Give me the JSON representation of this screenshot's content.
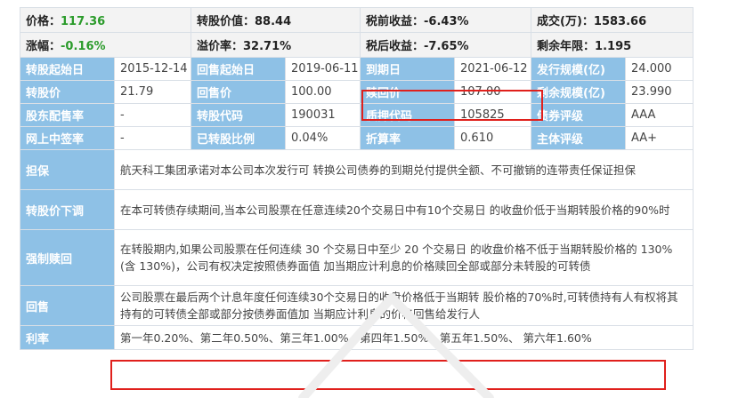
{
  "summary": {
    "price_label": "价格：",
    "price_value": "117.36",
    "conv_value_label": "转股价值：",
    "conv_value": "88.44",
    "pretax_label": "税前收益：",
    "pretax_value": "-6.43%",
    "volume_label": "成交(万)：",
    "volume_value": "1583.66",
    "change_label": "涨幅：",
    "change_value": "-0.16%",
    "premium_label": "溢价率：",
    "premium_value": "32.71%",
    "aftertax_label": "税后收益：",
    "aftertax_value": "-7.65%",
    "remaining_label": "剩余年限：",
    "remaining_value": "1.195"
  },
  "grid": [
    [
      {
        "l": "转股起始日",
        "v": "2015-12-14"
      },
      {
        "l": "回售起始日",
        "v": "2019-06-11"
      },
      {
        "l": "到期日",
        "v": "2021-06-12"
      },
      {
        "l": "发行规模(亿)",
        "v": "24.000"
      }
    ],
    [
      {
        "l": "转股价",
        "v": "21.79"
      },
      {
        "l": "回售价",
        "v": "100.00"
      },
      {
        "l": "赎回价",
        "v": "107.00"
      },
      {
        "l": "剩余规模(亿)",
        "v": "23.990"
      }
    ],
    [
      {
        "l": "股东配售率",
        "v": "-"
      },
      {
        "l": "转股代码",
        "v": "190031"
      },
      {
        "l": "质押代码",
        "v": "105825"
      },
      {
        "l": "债券评级",
        "v": "AAA"
      }
    ],
    [
      {
        "l": "网上中签率",
        "v": "-"
      },
      {
        "l": "已转股比例",
        "v": "0.04%"
      },
      {
        "l": "折算率",
        "v": "0.610"
      },
      {
        "l": "主体评级",
        "v": "AA+"
      }
    ]
  ],
  "details": [
    {
      "label": "担保",
      "text": "航天科工集团承诺对本公司本次发行可 转换公司债券的到期兑付提供全额、不可撤销的连带责任保证担保"
    },
    {
      "label": "转股价下调",
      "text": "在本可转债存续期间,当本公司股票在任意连续20个交易日中有10个交易日 的收盘价低于当期转股价格的90%时"
    },
    {
      "label": "强制赎回",
      "text": "在转股期内,如果公司股票在任何连续 30 个交易日中至少 20 个交易日 的收盘价格不低于当期转股价格的 130%(含 130%)，公司有权决定按照债券面值 加当期应计利息的价格赎回全部或部分未转股的可转债"
    },
    {
      "label": "回售",
      "text": "公司股票在最后两个计息年度任何连续30个交易日的收盘价格低于当期转 股价格的70%时,可转债持有人有权将其持有的可转债全部或部分按债券面值加 当期应计利息的价格回售给发行人"
    },
    {
      "label": "利率",
      "text": "第一年0.20%、第二年0.50%、第三年1.00%、第四年1.50%、第五年1.50%、 第六年1.60%"
    }
  ],
  "colors": {
    "label_bg": "#8ec1e6",
    "highlight": "#e0201c",
    "positive": "#2b9b2b"
  }
}
